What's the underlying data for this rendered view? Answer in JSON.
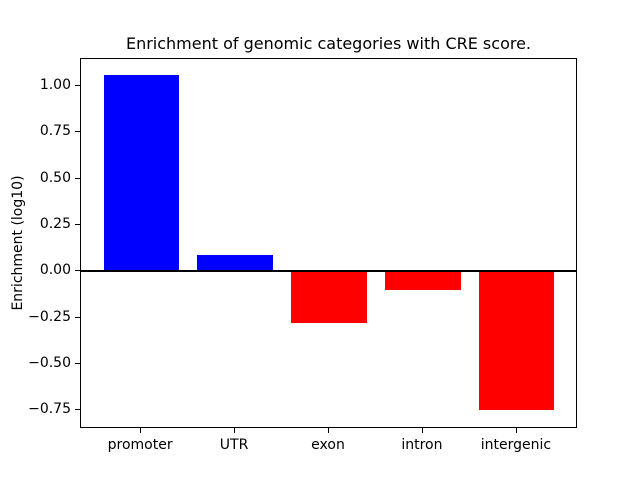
{
  "figure": {
    "background_color": "#ffffff",
    "frame_color": "#000000"
  },
  "chart_data": {
    "type": "bar",
    "title": "Enrichment of genomic categories with CRE score.",
    "xlabel": "",
    "ylabel": "Enrichment (log10)",
    "categories": [
      "promoter",
      "UTR",
      "exon",
      "intron",
      "intergenic"
    ],
    "values": [
      1.06,
      0.09,
      -0.28,
      -0.1,
      -0.75
    ],
    "bar_colors": [
      "#0000ff",
      "#0000ff",
      "#ff0000",
      "#ff0000",
      "#ff0000"
    ],
    "positive_color": "#0000ff",
    "negative_color": "#ff0000",
    "ylim": [
      -0.845,
      1.145
    ],
    "yticks": [
      1.0,
      0.75,
      0.5,
      0.25,
      0.0,
      -0.25,
      -0.5,
      -0.75
    ],
    "ytick_labels": [
      "1.00",
      "0.75",
      "0.50",
      "0.25",
      "0.00",
      "−0.25",
      "−0.50",
      "−0.75"
    ],
    "bar_width_fraction": 0.8,
    "x_margin_fraction": 0.05,
    "grid": false,
    "legend": null,
    "zero_line": true,
    "zero_line_color": "#000000"
  }
}
